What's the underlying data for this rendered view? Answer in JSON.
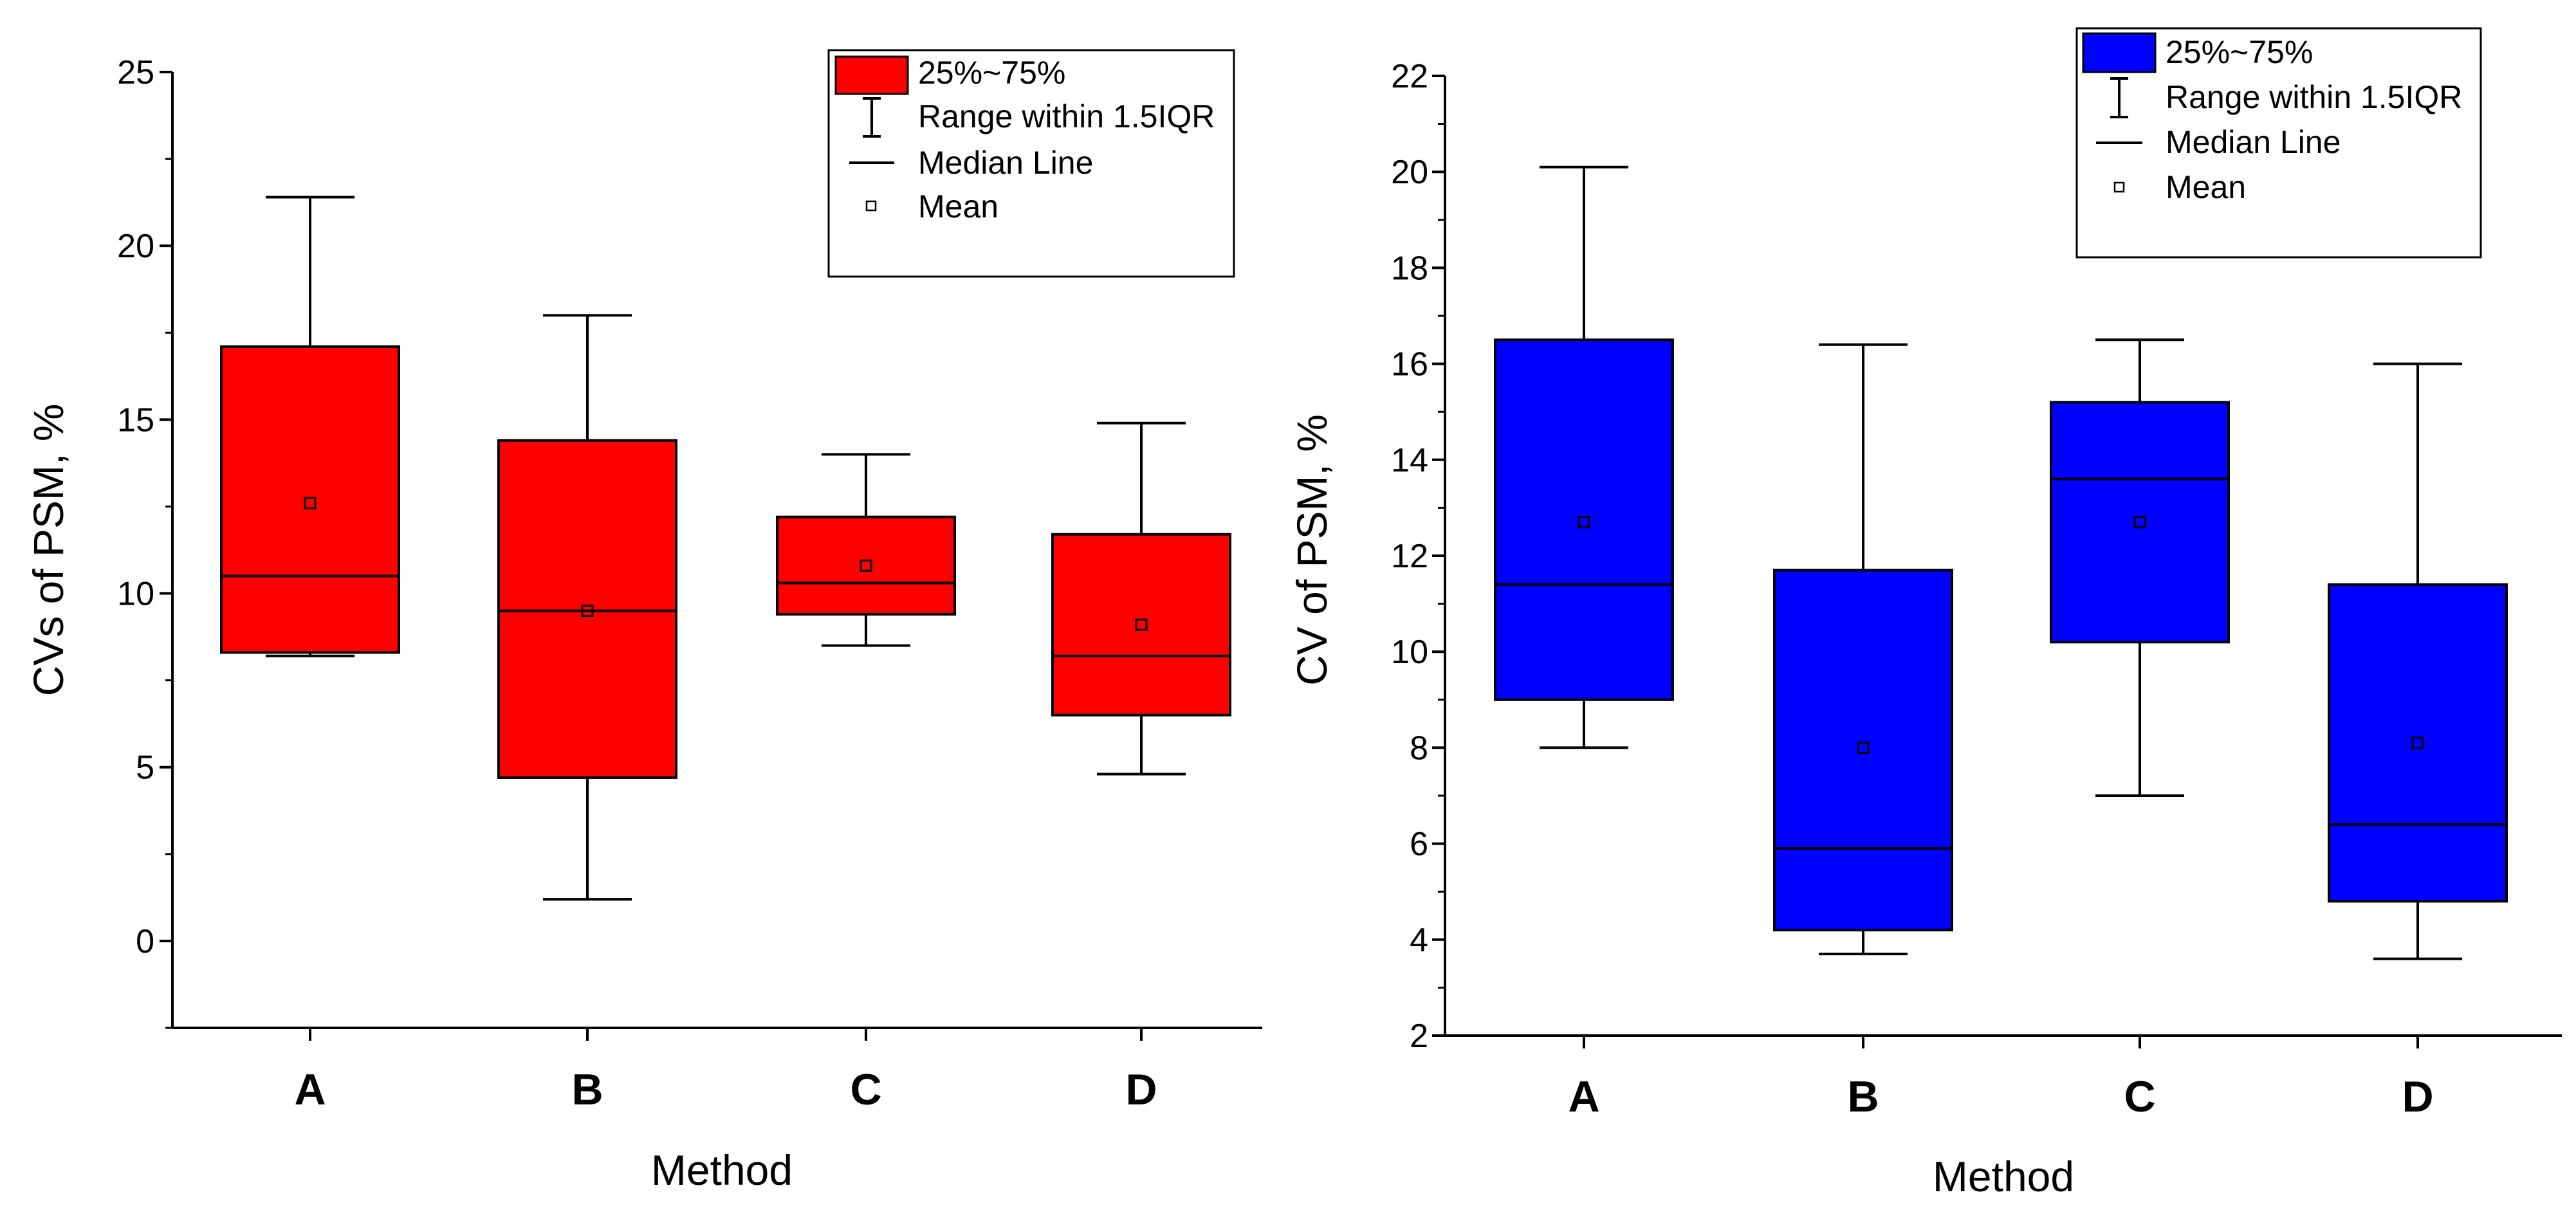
{
  "chart_data": [
    {
      "type": "box",
      "ylabel": "CVs of PSM, %",
      "xlabel": "Method",
      "categories": [
        "A",
        "B",
        "C",
        "D"
      ],
      "ylim": [
        -2.5,
        25
      ],
      "yticks": [
        0,
        5,
        10,
        15,
        20,
        25
      ],
      "ytick_labels": [
        "0",
        "5",
        "10",
        "15",
        "20",
        "25"
      ],
      "minor_step": 2.5,
      "fill_color": "#ff0000",
      "stats": [
        {
          "category": "A",
          "whisker_low": 8.2,
          "q1": 8.3,
          "median": 10.5,
          "q3": 17.1,
          "whisker_high": 21.4,
          "mean": 12.6
        },
        {
          "category": "B",
          "whisker_low": 1.2,
          "q1": 4.7,
          "median": 9.5,
          "q3": 14.4,
          "whisker_high": 18.0,
          "mean": 9.5
        },
        {
          "category": "C",
          "whisker_low": 8.5,
          "q1": 9.4,
          "median": 10.3,
          "q3": 12.2,
          "whisker_high": 14.0,
          "mean": 10.8
        },
        {
          "category": "D",
          "whisker_low": 4.8,
          "q1": 6.5,
          "median": 8.2,
          "q3": 11.7,
          "whisker_high": 14.9,
          "mean": 9.1
        }
      ],
      "legend": {
        "position": "top-right",
        "items": [
          "25%~75%",
          "Range within 1.5IQR",
          "Median Line",
          "Mean"
        ]
      }
    },
    {
      "type": "box",
      "ylabel": "CV of PSM, %",
      "xlabel": "Method",
      "categories": [
        "A",
        "B",
        "C",
        "D"
      ],
      "ylim": [
        2,
        22
      ],
      "yticks": [
        2,
        4,
        6,
        8,
        10,
        12,
        14,
        16,
        18,
        20,
        22
      ],
      "ytick_labels": [
        "2",
        "4",
        "6",
        "8",
        "10",
        "12",
        "14",
        "16",
        "18",
        "20",
        "22"
      ],
      "minor_step": 1,
      "fill_color": "#0000ff",
      "stats": [
        {
          "category": "A",
          "whisker_low": 8.0,
          "q1": 9.0,
          "median": 11.4,
          "q3": 16.5,
          "whisker_high": 20.1,
          "mean": 12.7
        },
        {
          "category": "B",
          "whisker_low": 3.7,
          "q1": 4.2,
          "median": 5.9,
          "q3": 11.7,
          "whisker_high": 16.4,
          "mean": 8.0
        },
        {
          "category": "C",
          "whisker_low": 7.0,
          "q1": 10.2,
          "median": 13.6,
          "q3": 15.2,
          "whisker_high": 16.5,
          "mean": 12.7
        },
        {
          "category": "D",
          "whisker_low": 3.6,
          "q1": 4.8,
          "median": 6.4,
          "q3": 11.4,
          "whisker_high": 16.0,
          "mean": 8.1
        }
      ],
      "legend": {
        "position": "top-right",
        "items": [
          "25%~75%",
          "Range within 1.5IQR",
          "Median Line",
          "Mean"
        ]
      }
    }
  ]
}
